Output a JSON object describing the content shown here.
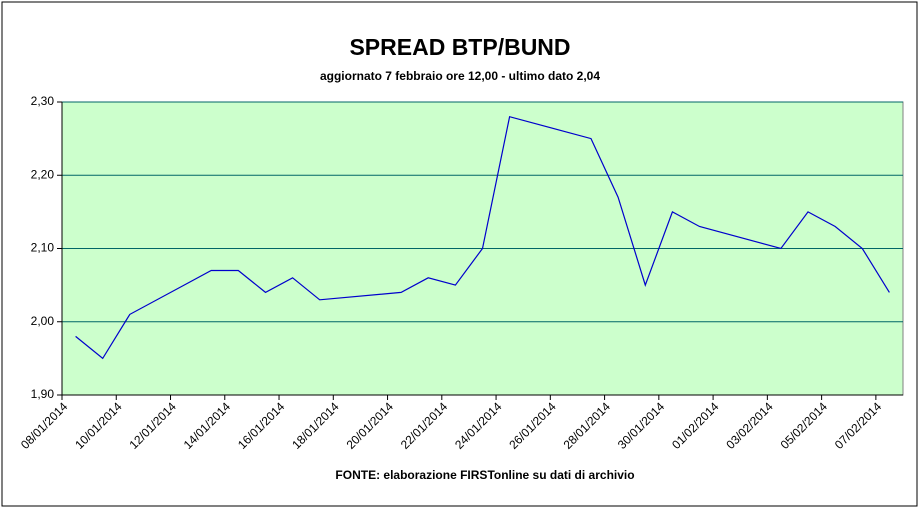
{
  "chart_data": {
    "type": "line",
    "title": "SPREAD BTP/BUND",
    "subtitle": "aggiornato 7 febbraio ore 12,00 - ultimo dato 2,04",
    "source": "FONTE: elaborazione FIRSTonline su dati di archivio",
    "x": [
      "08/01/2014",
      "09/01/2014",
      "10/01/2014",
      "12/01/2014",
      "13/01/2014",
      "14/01/2014",
      "15/01/2014",
      "16/01/2014",
      "17/01/2014",
      "20/01/2014",
      "21/01/2014",
      "22/01/2014",
      "23/01/2014",
      "24/01/2014",
      "26/01/2014",
      "27/01/2014",
      "28/01/2014",
      "29/01/2014",
      "30/01/2014",
      "31/01/2014",
      "03/02/2014",
      "04/02/2014",
      "05/02/2014",
      "06/02/2014",
      "07/02/2014"
    ],
    "series": [
      {
        "name": "Spread",
        "color": "#0000cc",
        "values": [
          1.98,
          1.95,
          2.01,
          2.05,
          2.07,
          2.07,
          2.04,
          2.06,
          2.03,
          2.04,
          2.06,
          2.05,
          2.1,
          2.28,
          2.26,
          2.25,
          2.17,
          2.05,
          2.15,
          2.13,
          2.1,
          2.15,
          2.13,
          2.1,
          2.04
        ]
      }
    ],
    "xlim": [
      "08/01/2014",
      "07/02/2014"
    ],
    "xticks": [
      "08/01/2014",
      "10/01/2014",
      "12/01/2014",
      "14/01/2014",
      "16/01/2014",
      "18/01/2014",
      "20/01/2014",
      "22/01/2014",
      "24/01/2014",
      "26/01/2014",
      "28/01/2014",
      "30/01/2014",
      "01/02/2014",
      "03/02/2014",
      "05/02/2014",
      "07/02/2014"
    ],
    "ylim": [
      1.9,
      2.3
    ],
    "yticks": [
      {
        "value": 1.9,
        "label": "1,90"
      },
      {
        "value": 2.0,
        "label": "2,00"
      },
      {
        "value": 2.1,
        "label": "2,10"
      },
      {
        "value": 2.2,
        "label": "2,20"
      },
      {
        "value": 2.3,
        "label": "2,30"
      }
    ],
    "grid": true,
    "plot_background": "#ccffcc"
  }
}
